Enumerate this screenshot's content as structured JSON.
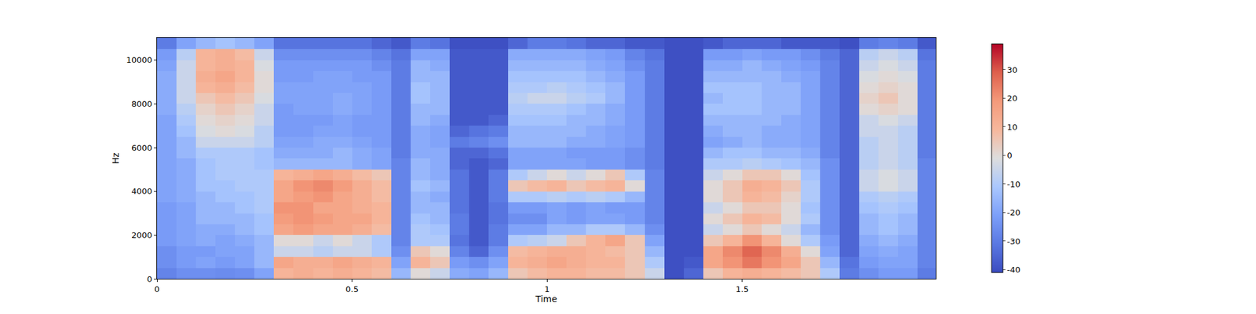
{
  "chart_data": {
    "type": "heatmap",
    "x_label": "Time",
    "y_label": "Hz",
    "x": [
      0,
      0.05,
      0.1,
      0.15,
      0.2,
      0.25,
      0.3,
      0.35,
      0.4,
      0.45,
      0.5,
      0.55,
      0.6,
      0.65,
      0.7,
      0.75,
      0.8,
      0.85,
      0.9,
      0.95,
      1,
      1.05,
      1.1,
      1.15,
      1.2,
      1.25,
      1.3,
      1.35,
      1.4,
      1.45,
      1.5,
      1.55,
      1.6,
      1.65,
      1.7,
      1.75,
      1.8,
      1.85,
      1.9,
      1.95,
      1.996
    ],
    "y": [
      0,
      500,
      1000,
      1500,
      2000,
      2500,
      3000,
      3500,
      4000,
      4500,
      5000,
      5500,
      6000,
      6500,
      7000,
      7500,
      8000,
      8500,
      9000,
      9500,
      10000,
      10500,
      11025
    ],
    "z": [
      [
        -28,
        -25,
        -25,
        -26,
        -25,
        -20,
        10,
        12,
        10,
        12,
        10,
        8,
        -15,
        0,
        -5,
        -18,
        -20,
        -15,
        5,
        8,
        10,
        10,
        8,
        8,
        5,
        -5,
        -40,
        -35,
        5,
        10,
        12,
        10,
        8,
        5,
        -10,
        -30,
        -25,
        -22,
        -22,
        -30
      ],
      [
        -25,
        -22,
        -20,
        -22,
        -20,
        -15,
        15,
        12,
        12,
        15,
        12,
        10,
        -20,
        10,
        5,
        -22,
        -25,
        -20,
        10,
        12,
        15,
        12,
        10,
        10,
        5,
        -10,
        -40,
        -38,
        15,
        20,
        25,
        20,
        15,
        5,
        -15,
        -32,
        -22,
        -20,
        -20,
        -28
      ],
      [
        -25,
        -22,
        -22,
        -20,
        -20,
        -15,
        -5,
        -5,
        -8,
        -5,
        -5,
        -10,
        -25,
        5,
        0,
        -28,
        -35,
        -25,
        8,
        10,
        12,
        12,
        10,
        8,
        5,
        -15,
        -40,
        -40,
        15,
        22,
        28,
        22,
        12,
        0,
        -20,
        -35,
        -20,
        -18,
        -20,
        -28
      ],
      [
        -22,
        -20,
        -18,
        -20,
        -18,
        -15,
        0,
        0,
        -5,
        0,
        -5,
        -10,
        -28,
        -10,
        -10,
        -32,
        -38,
        -30,
        -10,
        -8,
        -5,
        5,
        10,
        15,
        5,
        -20,
        -40,
        -40,
        5,
        10,
        20,
        10,
        0,
        -10,
        -22,
        -35,
        -18,
        -15,
        -18,
        -28
      ],
      [
        -22,
        -20,
        -18,
        -18,
        -15,
        -12,
        15,
        18,
        15,
        15,
        12,
        8,
        -28,
        -10,
        -12,
        -30,
        -38,
        -30,
        -20,
        -20,
        -15,
        -15,
        -10,
        -10,
        -15,
        -25,
        -40,
        -40,
        -5,
        0,
        5,
        0,
        -5,
        -15,
        -25,
        -35,
        -15,
        -12,
        -15,
        -28
      ],
      [
        -22,
        -20,
        -15,
        -15,
        -15,
        -12,
        18,
        20,
        18,
        15,
        15,
        10,
        -28,
        -12,
        -15,
        -30,
        -38,
        -32,
        -25,
        -25,
        -20,
        -22,
        -20,
        -20,
        -22,
        -28,
        -40,
        -40,
        0,
        5,
        10,
        8,
        0,
        -10,
        -25,
        -35,
        -15,
        -12,
        -15,
        -28
      ],
      [
        -22,
        -20,
        -15,
        -15,
        -12,
        -10,
        20,
        20,
        15,
        15,
        12,
        10,
        -28,
        -15,
        -15,
        -32,
        -38,
        -32,
        -22,
        -22,
        -20,
        -22,
        -20,
        -22,
        -22,
        -28,
        -40,
        -40,
        -5,
        0,
        5,
        5,
        0,
        -12,
        -25,
        -35,
        -12,
        -10,
        -12,
        -28
      ],
      [
        -20,
        -18,
        -15,
        -12,
        -12,
        -10,
        15,
        18,
        20,
        15,
        12,
        8,
        -28,
        -15,
        -18,
        -32,
        -38,
        -30,
        -10,
        -10,
        -8,
        -10,
        -8,
        -10,
        -15,
        -28,
        -40,
        -40,
        0,
        5,
        10,
        8,
        2,
        -10,
        -25,
        -35,
        -10,
        -8,
        -10,
        -28
      ],
      [
        -20,
        -18,
        -12,
        -12,
        -10,
        -10,
        15,
        20,
        22,
        18,
        12,
        8,
        -28,
        -12,
        -15,
        -32,
        -38,
        -30,
        5,
        8,
        10,
        5,
        8,
        10,
        0,
        -28,
        -40,
        -40,
        0,
        5,
        12,
        10,
        5,
        -10,
        -25,
        -35,
        -5,
        -2,
        -5,
        -28
      ],
      [
        -20,
        -18,
        -12,
        -10,
        -10,
        -10,
        10,
        12,
        15,
        12,
        8,
        5,
        -28,
        -15,
        -18,
        -32,
        -38,
        -30,
        -10,
        -5,
        0,
        -5,
        0,
        5,
        -10,
        -28,
        -40,
        -40,
        -5,
        0,
        5,
        5,
        0,
        -12,
        -25,
        -35,
        -5,
        -2,
        -5,
        -28
      ],
      [
        -20,
        -18,
        -12,
        -10,
        -10,
        -12,
        -15,
        -15,
        -15,
        -15,
        -18,
        -20,
        -28,
        -15,
        -18,
        -35,
        -38,
        -35,
        -20,
        -20,
        -20,
        -20,
        -22,
        -22,
        -25,
        -30,
        -40,
        -40,
        -10,
        -10,
        -8,
        -10,
        -12,
        -15,
        -25,
        -35,
        -8,
        -5,
        -8,
        -28
      ],
      [
        -20,
        -15,
        -10,
        -10,
        -10,
        -12,
        -18,
        -18,
        -18,
        -15,
        -18,
        -20,
        -30,
        -18,
        -18,
        -35,
        -35,
        -32,
        -20,
        -20,
        -20,
        -22,
        -22,
        -22,
        -25,
        -30,
        -40,
        -40,
        -15,
        -12,
        -12,
        -15,
        -15,
        -18,
        -28,
        -35,
        -8,
        -5,
        -8,
        -30
      ],
      [
        -20,
        -15,
        -5,
        -5,
        -5,
        -8,
        -20,
        -20,
        -18,
        -18,
        -20,
        -22,
        -30,
        -18,
        -20,
        -30,
        -28,
        -25,
        -15,
        -15,
        -15,
        -18,
        -18,
        -20,
        -22,
        -30,
        -40,
        -40,
        -20,
        -18,
        -15,
        -18,
        -18,
        -20,
        -28,
        -35,
        -8,
        -5,
        -8,
        -30
      ],
      [
        -20,
        -12,
        -2,
        0,
        -2,
        -8,
        -22,
        -22,
        -20,
        -20,
        -22,
        -22,
        -30,
        -18,
        -20,
        -35,
        -32,
        -30,
        -15,
        -15,
        -15,
        -15,
        -18,
        -20,
        -22,
        -30,
        -40,
        -40,
        -18,
        -15,
        -15,
        -18,
        -18,
        -20,
        -28,
        -35,
        -5,
        -5,
        -8,
        -30
      ],
      [
        -20,
        -10,
        0,
        2,
        0,
        -5,
        -22,
        -22,
        -22,
        -20,
        -22,
        -22,
        -30,
        -15,
        -18,
        -38,
        -38,
        -35,
        -12,
        -12,
        -12,
        -15,
        -15,
        -18,
        -22,
        -30,
        -40,
        -40,
        -15,
        -15,
        -15,
        -15,
        -18,
        -20,
        -28,
        -35,
        -5,
        -2,
        -5,
        -30
      ],
      [
        -18,
        -8,
        2,
        5,
        2,
        -5,
        -22,
        -20,
        -20,
        -18,
        -20,
        -22,
        -30,
        -15,
        -15,
        -38,
        -38,
        -38,
        -10,
        -10,
        -10,
        -12,
        -15,
        -18,
        -22,
        -30,
        -40,
        -40,
        -12,
        -12,
        -12,
        -15,
        -15,
        -20,
        -28,
        -35,
        0,
        2,
        0,
        -30
      ],
      [
        -18,
        -5,
        5,
        8,
        5,
        -2,
        -20,
        -20,
        -20,
        -18,
        -20,
        -22,
        -30,
        -12,
        -15,
        -38,
        -38,
        -38,
        -8,
        -5,
        -5,
        -8,
        -10,
        -15,
        -22,
        -30,
        -40,
        -40,
        -15,
        -12,
        -12,
        -15,
        -15,
        -20,
        -28,
        -35,
        2,
        5,
        0,
        -30
      ],
      [
        -18,
        -5,
        10,
        12,
        8,
        0,
        -20,
        -20,
        -20,
        -20,
        -20,
        -22,
        -30,
        -12,
        -15,
        -38,
        -38,
        -38,
        -10,
        -10,
        -8,
        -10,
        -12,
        -15,
        -22,
        -30,
        -40,
        -40,
        -12,
        -12,
        -12,
        -15,
        -15,
        -20,
        -28,
        -35,
        0,
        2,
        0,
        -30
      ],
      [
        -18,
        -5,
        12,
        15,
        10,
        0,
        -22,
        -22,
        -20,
        -20,
        -22,
        -22,
        -30,
        -15,
        -15,
        -38,
        -38,
        -38,
        -12,
        -12,
        -12,
        -12,
        -15,
        -18,
        -22,
        -30,
        -40,
        -40,
        -15,
        -15,
        -15,
        -15,
        -18,
        -20,
        -28,
        -35,
        -2,
        0,
        -2,
        -30
      ],
      [
        -20,
        -5,
        10,
        12,
        10,
        -2,
        -22,
        -22,
        -22,
        -22,
        -22,
        -25,
        -30,
        -15,
        -18,
        -38,
        -38,
        -38,
        -15,
        -15,
        -15,
        -15,
        -18,
        -20,
        -25,
        -30,
        -40,
        -40,
        -18,
        -18,
        -15,
        -18,
        -20,
        -22,
        -28,
        -35,
        -5,
        -2,
        -5,
        -30
      ],
      [
        -22,
        -8,
        10,
        12,
        8,
        -5,
        -25,
        -25,
        -25,
        -25,
        -25,
        -28,
        -32,
        -20,
        -20,
        -38,
        -38,
        -38,
        -18,
        -18,
        -18,
        -18,
        -20,
        -22,
        -28,
        -32,
        -40,
        -40,
        -22,
        -22,
        -20,
        -22,
        -22,
        -25,
        -30,
        -35,
        -8,
        -5,
        -8,
        -32
      ],
      [
        -30,
        -20,
        -15,
        -12,
        -15,
        -20,
        -32,
        -32,
        -32,
        -32,
        -32,
        -35,
        -38,
        -30,
        -32,
        -40,
        -40,
        -40,
        -35,
        -30,
        -30,
        -32,
        -35,
        -35,
        -38,
        -38,
        -40,
        -40,
        -38,
        -35,
        -35,
        -35,
        -38,
        -38,
        -38,
        -40,
        -30,
        -28,
        -30,
        -38
      ]
    ],
    "xlim": [
      0,
      1.996
    ],
    "ylim": [
      0,
      11025
    ],
    "xticks": [
      0,
      0.5,
      1,
      1.5
    ],
    "yticks": [
      0,
      2000,
      4000,
      6000,
      8000,
      10000
    ],
    "colorbar_range": [
      -41,
      39
    ],
    "colorbar_ticks": [
      -40,
      -30,
      -20,
      -10,
      0,
      10,
      20,
      30
    ],
    "grid": false
  }
}
